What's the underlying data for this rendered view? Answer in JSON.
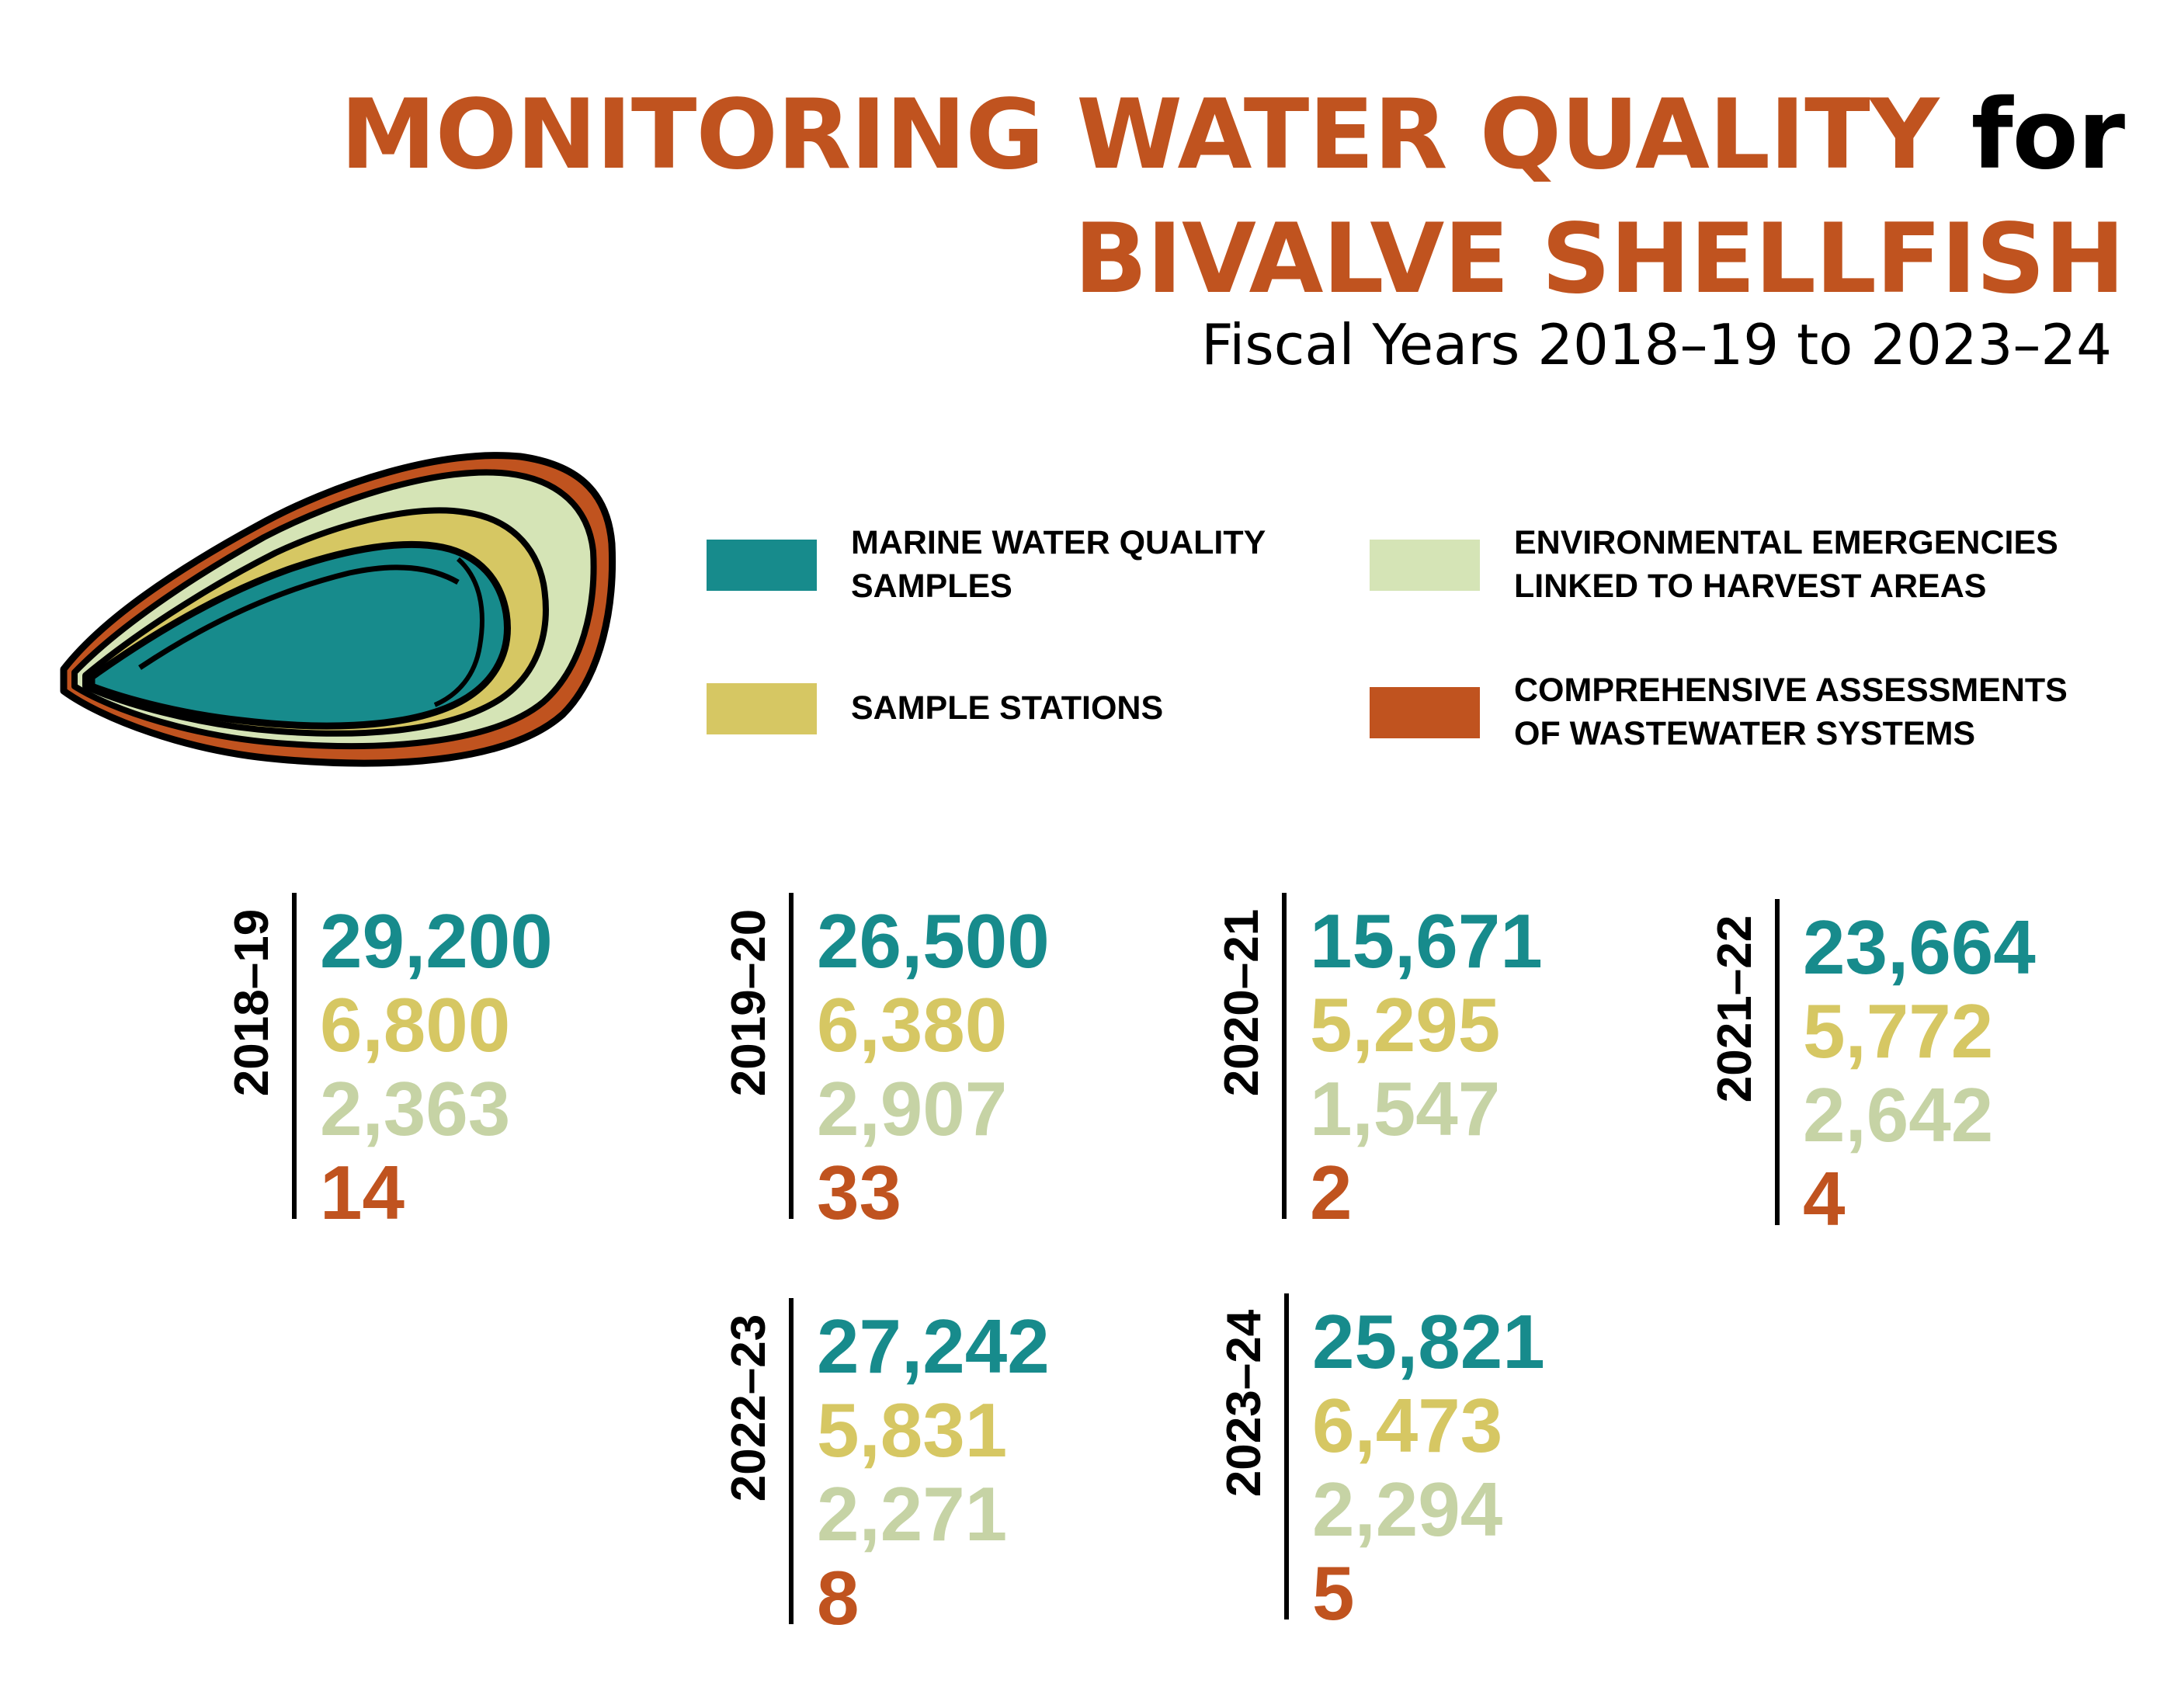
{
  "title": {
    "part1": "MONITORING WATER QUALITY",
    "part2": "for",
    "line2": "BIVALVE SHELLFISH"
  },
  "subtitle": "Fiscal Years 2018–19 to 2023–24",
  "colors": {
    "title": "#c0531f",
    "marine": "#178b8c",
    "stations": "#d6c763",
    "emergencies": "#c6d3a5",
    "emergencies_swatch": "#d5e4b6",
    "assessments": "#c0531f"
  },
  "legend": {
    "marine": "MARINE WATER QUALITY\nSAMPLES",
    "stations": "SAMPLE STATIONS",
    "emergencies": "ENVIRONMENTAL EMERGENCIES\nLINKED TO HARVEST AREAS",
    "assessments": "COMPREHENSIVE ASSESSMENTS\nOF WASTEWATER SYSTEMS"
  },
  "chart_data": {
    "type": "table",
    "title": "MONITORING WATER QUALITY for BIVALVE SHELLFISH",
    "subtitle": "Fiscal Years 2018–19 to 2023–24",
    "categories": [
      "2018–19",
      "2019–20",
      "2020–21",
      "2021–22",
      "2022–23",
      "2023–24"
    ],
    "series": [
      {
        "name": "MARINE WATER QUALITY SAMPLES",
        "values": [
          "29,200",
          "26,500",
          "15,671",
          "23,664",
          "27,242",
          "25,821"
        ]
      },
      {
        "name": "SAMPLE STATIONS",
        "values": [
          "6,800",
          "6,380",
          "5,295",
          "5,772",
          "5,831",
          "6,473"
        ]
      },
      {
        "name": "ENVIRONMENTAL EMERGENCIES LINKED TO HARVEST AREAS",
        "values": [
          "2,363",
          "2,907",
          "1,547",
          "2,642",
          "2,271",
          "2,294"
        ]
      },
      {
        "name": "COMPREHENSIVE ASSESSMENTS OF WASTEWATER SYSTEMS",
        "values": [
          "14",
          "33",
          "2",
          "4",
          "8",
          "5"
        ]
      }
    ]
  }
}
